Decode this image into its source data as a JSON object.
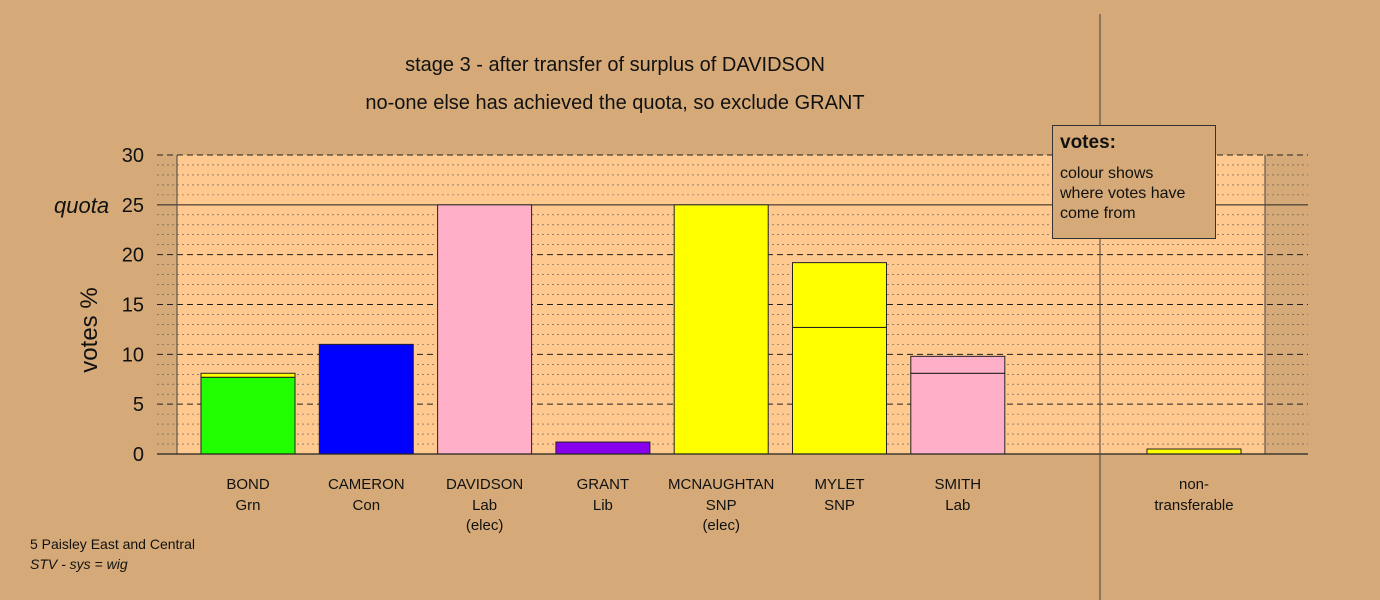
{
  "chart_data": {
    "type": "bar",
    "title": "stage 3 - after transfer of surplus of DAVIDSON",
    "subtitle": "no-one else has achieved the quota, so exclude GRANT",
    "ylabel": "votes %",
    "ylim": [
      0,
      30
    ],
    "yticks": [
      0,
      5,
      10,
      15,
      20,
      25,
      30
    ],
    "quota": 25,
    "quota_label": "quota",
    "grid": true,
    "candidates": [
      {
        "name": "BOND",
        "party": "Grn",
        "status": "",
        "segments": [
          {
            "value": 7.7,
            "color": "#22ff00"
          },
          {
            "value": 0.4,
            "color": "#ffff00"
          }
        ]
      },
      {
        "name": "CAMERON",
        "party": "Con",
        "status": "",
        "segments": [
          {
            "value": 11.0,
            "color": "#0000ff"
          }
        ]
      },
      {
        "name": "DAVIDSON",
        "party": "Lab",
        "status": "(elec)",
        "segments": [
          {
            "value": 25.0,
            "color": "#ffb0c8"
          }
        ]
      },
      {
        "name": "GRANT",
        "party": "Lib",
        "status": "",
        "segments": [
          {
            "value": 1.2,
            "color": "#8800ee"
          }
        ]
      },
      {
        "name": "MCNAUGHTAN",
        "party": "SNP",
        "status": "(elec)",
        "segments": [
          {
            "value": 25.0,
            "color": "#ffff00"
          }
        ]
      },
      {
        "name": "MYLET",
        "party": "SNP",
        "status": "",
        "segments": [
          {
            "value": 12.7,
            "color": "#ffff00"
          },
          {
            "value": 6.5,
            "color": "#ffff00"
          }
        ]
      },
      {
        "name": "SMITH",
        "party": "Lab",
        "status": "",
        "segments": [
          {
            "value": 8.1,
            "color": "#ffb0c8"
          },
          {
            "value": 1.7,
            "color": "#ffb0c8"
          }
        ]
      }
    ],
    "nontransferable": {
      "label1": "non-",
      "label2": "transferable",
      "segments": [
        {
          "value": 0.5,
          "color": "#ffff00"
        }
      ]
    }
  },
  "legend": {
    "title": "votes:",
    "body": "colour shows where votes have come from"
  },
  "footer": {
    "line1": "5 Paisley East and Central",
    "line2": "STV - sys = wig"
  },
  "colors": {
    "background": "#d5aa78",
    "plot_area": "#ffc98f"
  }
}
